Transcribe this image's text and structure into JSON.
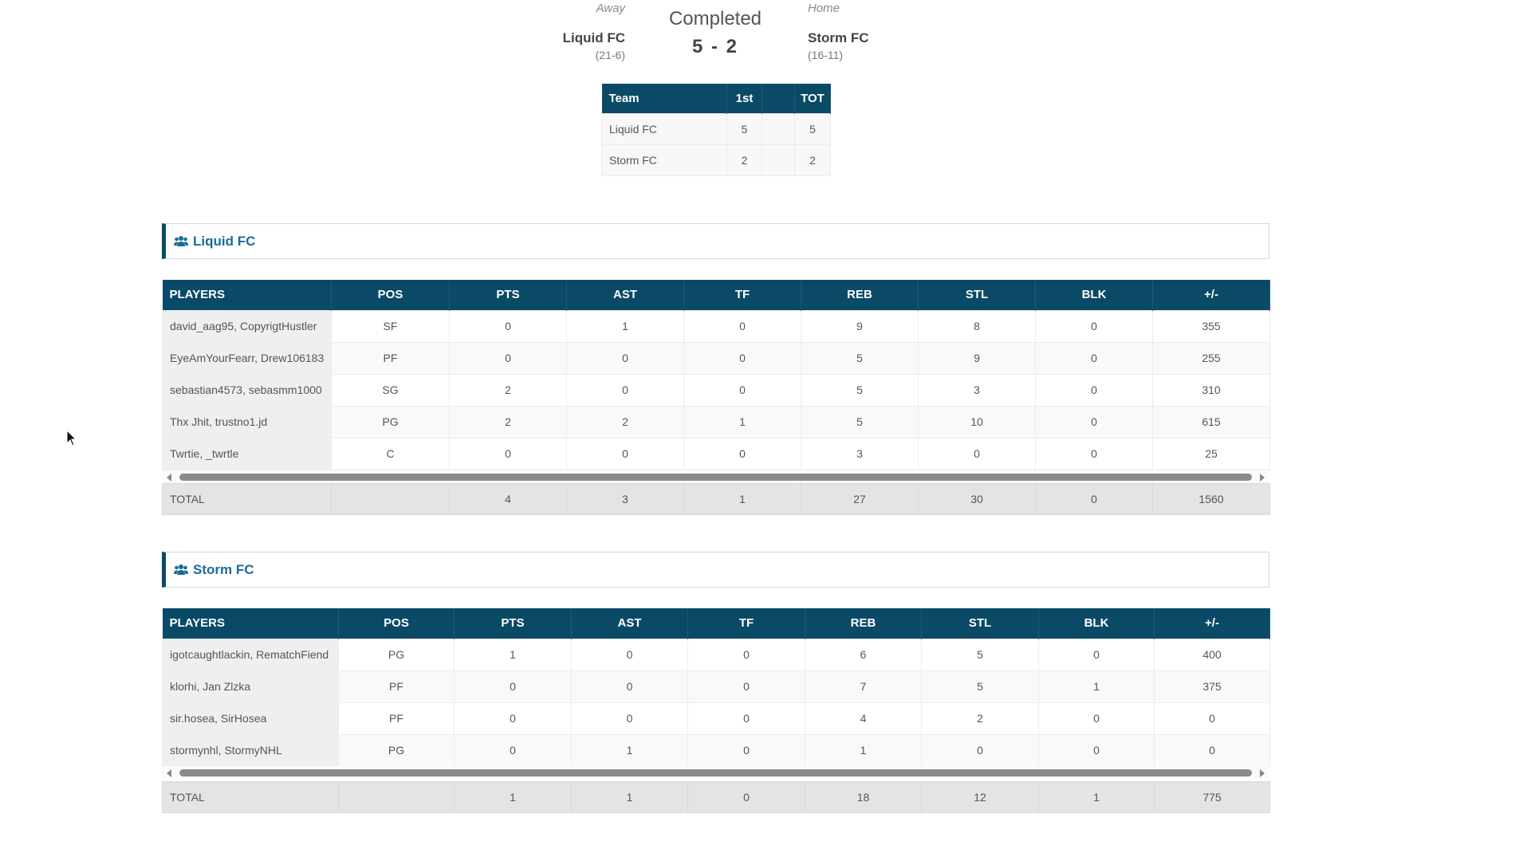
{
  "game": {
    "status": "Completed",
    "score": "5 - 2",
    "away": {
      "label": "Away",
      "name": "Liquid FC",
      "record": "(21-6)"
    },
    "home": {
      "label": "Home",
      "name": "Storm FC",
      "record": "(16-11)"
    }
  },
  "linescore": {
    "headers": [
      "Team",
      "1st",
      "",
      "TOT"
    ],
    "rows": [
      [
        "Liquid FC",
        "5",
        "",
        "5"
      ],
      [
        "Storm FC",
        "2",
        "",
        "2"
      ]
    ]
  },
  "teams": [
    {
      "title": "Liquid FC",
      "headers": [
        "PLAYERS",
        "POS",
        "PTS",
        "AST",
        "TF",
        "REB",
        "STL",
        "BLK",
        "+/-"
      ],
      "rows": [
        [
          "david_aag95, CopyrigtHustler",
          "SF",
          "0",
          "1",
          "0",
          "9",
          "8",
          "0",
          "355"
        ],
        [
          "EyeAmYourFearr, Drew106183",
          "PF",
          "0",
          "0",
          "0",
          "5",
          "9",
          "0",
          "255"
        ],
        [
          "sebastian4573, sebasmm1000",
          "SG",
          "2",
          "0",
          "0",
          "5",
          "3",
          "0",
          "310"
        ],
        [
          "Thx Jhit, trustno1.jd",
          "PG",
          "2",
          "2",
          "1",
          "5",
          "10",
          "0",
          "615"
        ],
        [
          "Twrtie, _twrtle",
          "C",
          "0",
          "0",
          "0",
          "3",
          "0",
          "0",
          "25"
        ]
      ],
      "totals": [
        "TOTAL",
        "",
        "4",
        "3",
        "1",
        "27",
        "30",
        "0",
        "1560"
      ]
    },
    {
      "title": "Storm FC",
      "headers": [
        "PLAYERS",
        "POS",
        "PTS",
        "AST",
        "TF",
        "REB",
        "STL",
        "BLK",
        "+/-"
      ],
      "rows": [
        [
          "igotcaughtlackin, RematchFiend",
          "PG",
          "1",
          "0",
          "0",
          "6",
          "5",
          "0",
          "400"
        ],
        [
          "klorhi, Jan Zlzka",
          "PF",
          "0",
          "0",
          "0",
          "7",
          "5",
          "1",
          "375"
        ],
        [
          "sir.hosea, SirHosea",
          "PF",
          "0",
          "0",
          "0",
          "4",
          "2",
          "0",
          "0"
        ],
        [
          "stormynhl, StormyNHL",
          "PG",
          "0",
          "1",
          "0",
          "1",
          "0",
          "0",
          "0"
        ]
      ],
      "totals": [
        "TOTAL",
        "",
        "1",
        "1",
        "0",
        "18",
        "12",
        "1",
        "775"
      ]
    }
  ],
  "colors": {
    "header_bg": "#0a4a67",
    "section_title": "#1c6a99"
  }
}
